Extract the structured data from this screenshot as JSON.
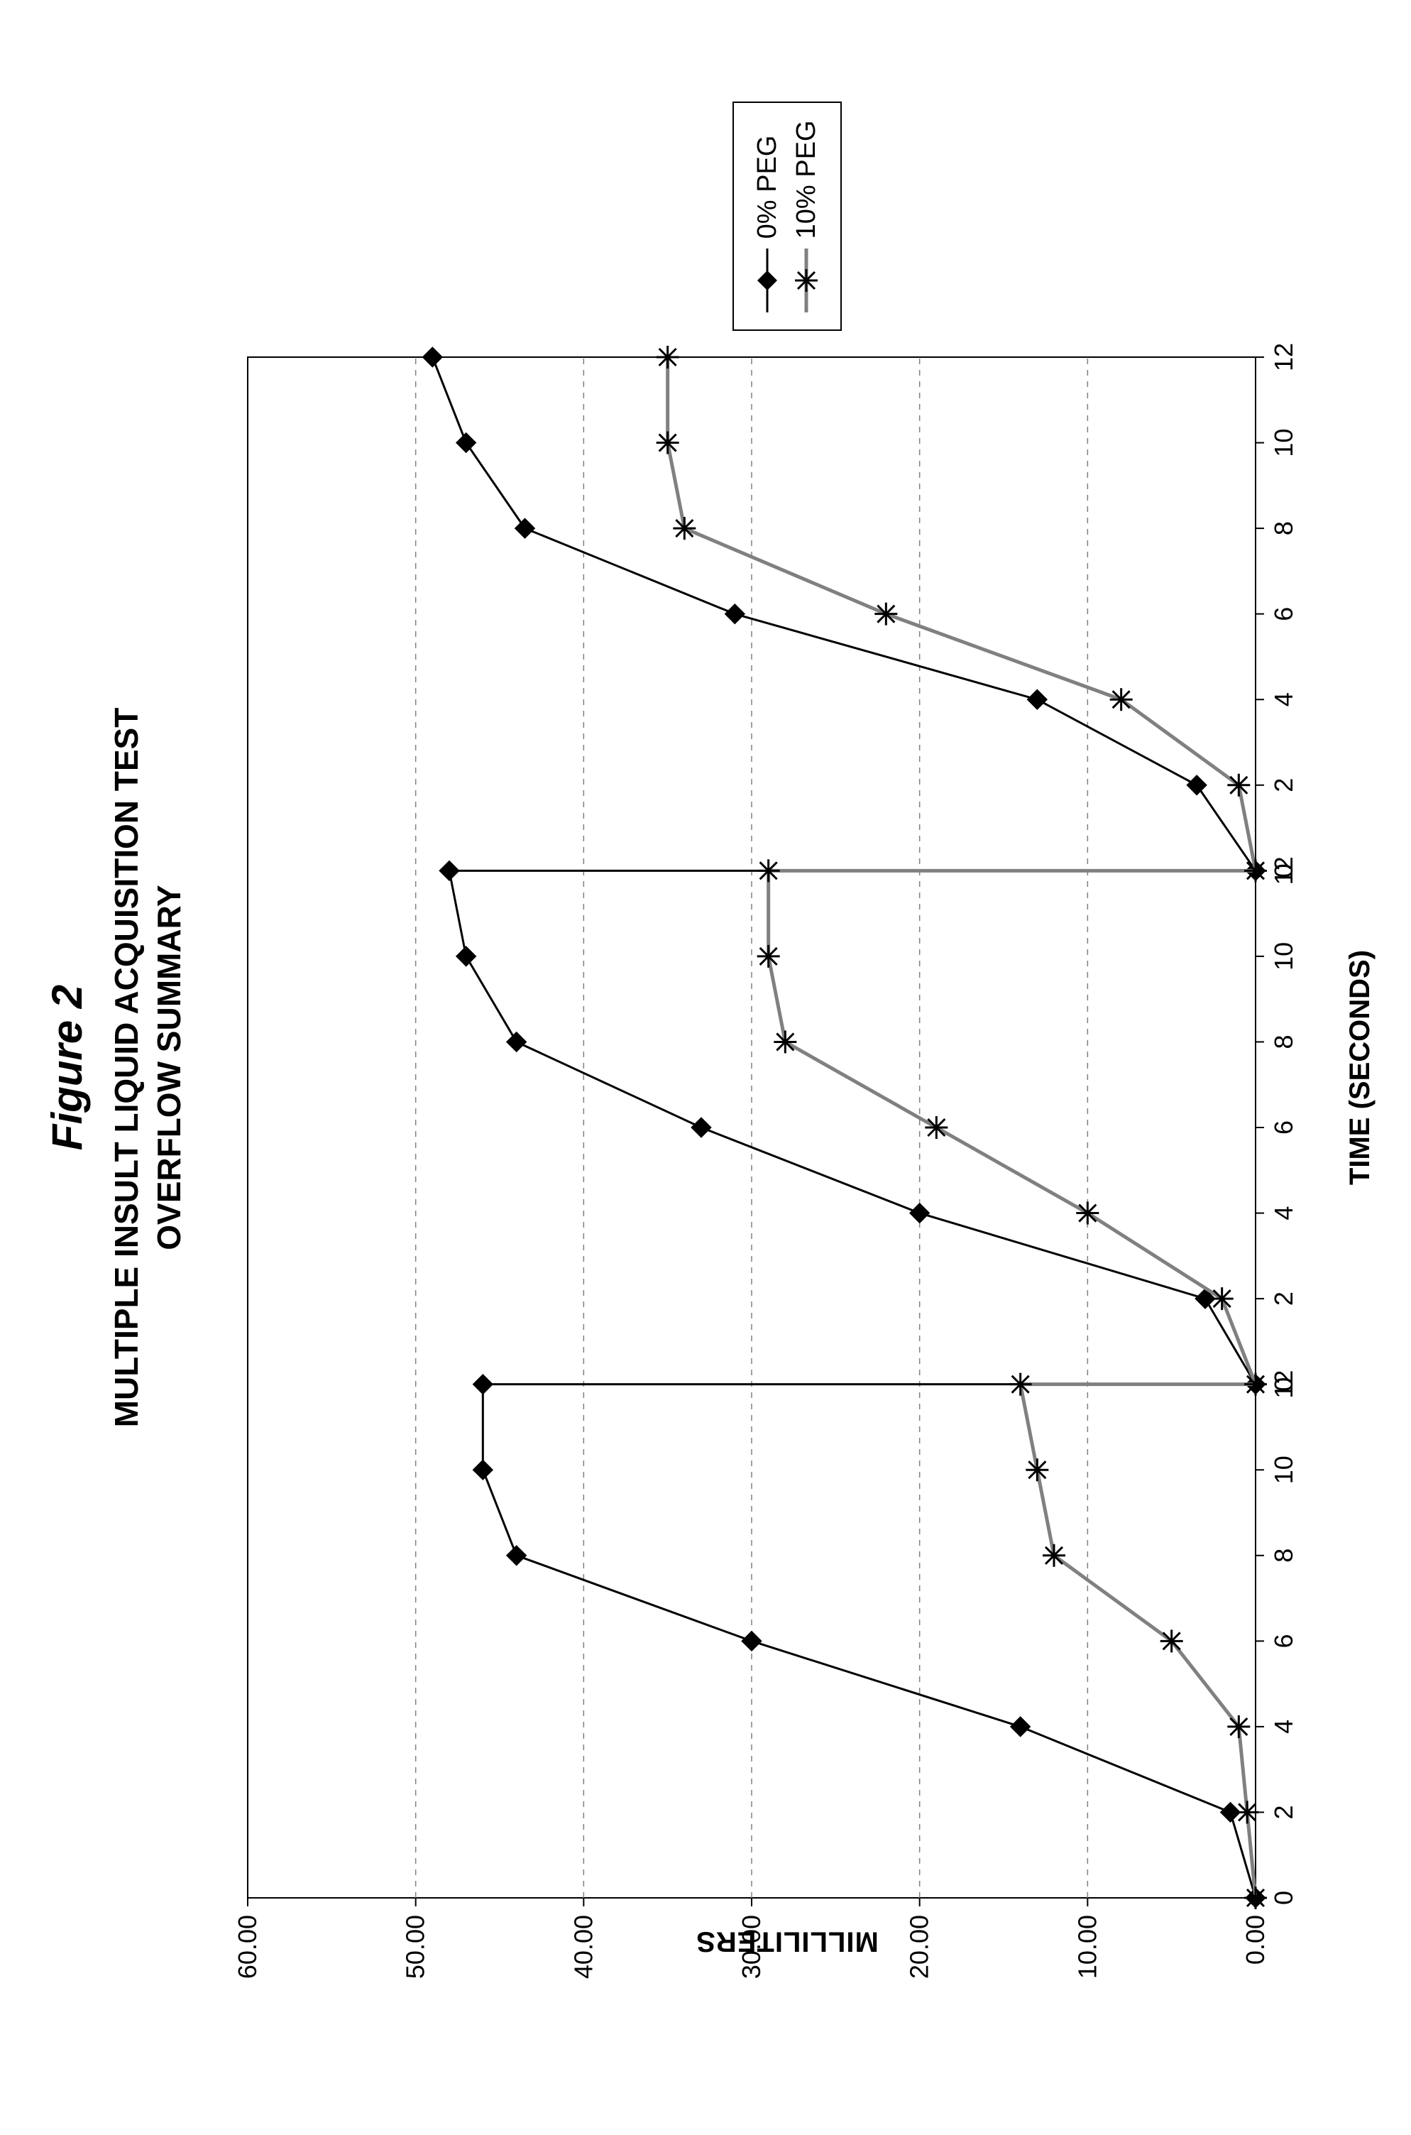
{
  "figure_label": "Figure 2",
  "title_line1": "MULTIPLE INSULT LIQUID ACQUISITION TEST",
  "title_line2": "OVERFLOW SUMMARY",
  "xlabel": "TIME (SECONDS)",
  "ylabel": "MILLILITERS",
  "chart": {
    "type": "line",
    "background_color": "#ffffff",
    "plot_border_color": "#000000",
    "plot_border_width": 2,
    "grid_color": "#808080",
    "grid_dash": "8 8",
    "grid_width": 1.5,
    "label_fontsize": 40,
    "tick_fontsize": 36,
    "y": {
      "min": 0,
      "max": 60,
      "ticks": [
        0,
        10,
        20,
        30,
        40,
        50,
        60
      ],
      "tick_labels": [
        "0.00",
        "10.00",
        "20.00",
        "30.00",
        "40.00",
        "50.00",
        "60.00"
      ]
    },
    "panels": [
      {
        "x_ticks": [
          0,
          2,
          4,
          6,
          8,
          10,
          12
        ]
      },
      {
        "x_ticks": [
          0,
          2,
          4,
          6,
          8,
          10,
          12
        ]
      },
      {
        "x_ticks": [
          0,
          2,
          4,
          6,
          8,
          10,
          12
        ]
      }
    ],
    "series": [
      {
        "id": "s0",
        "label": "0% PEG",
        "color": "#000000",
        "line_width": 3,
        "marker": "diamond",
        "marker_size": 14,
        "marker_fill": "#000000",
        "segments": [
          {
            "panel": 0,
            "x": [
              0,
              2,
              4,
              6,
              8,
              10,
              12
            ],
            "y": [
              0.0,
              1.5,
              14.0,
              30.0,
              44.0,
              46.0,
              46.0
            ]
          },
          {
            "panel": 1,
            "x": [
              0,
              2,
              4,
              6,
              8,
              10,
              12
            ],
            "y": [
              0.0,
              3.0,
              20.0,
              33.0,
              44.0,
              47.0,
              48.0
            ]
          },
          {
            "panel": 2,
            "x": [
              0,
              2,
              4,
              6,
              8,
              10,
              12
            ],
            "y": [
              0.0,
              3.5,
              13.0,
              31.0,
              43.5,
              47.0,
              49.0
            ]
          }
        ]
      },
      {
        "id": "s1",
        "label": "10% PEG",
        "color": "#808080",
        "line_width": 5,
        "marker": "star",
        "marker_size": 16,
        "marker_fill": "#000000",
        "segments": [
          {
            "panel": 0,
            "x": [
              0,
              2,
              4,
              6,
              8,
              10,
              12
            ],
            "y": [
              0.0,
              0.5,
              1.0,
              5.0,
              12.0,
              13.0,
              14.0
            ]
          },
          {
            "panel": 1,
            "x": [
              0,
              2,
              4,
              6,
              8,
              10,
              12
            ],
            "y": [
              0.0,
              2.0,
              10.0,
              19.0,
              28.0,
              29.0,
              29.0
            ]
          },
          {
            "panel": 2,
            "x": [
              0,
              2,
              4,
              6,
              8,
              10,
              12
            ],
            "y": [
              0.0,
              1.0,
              8.0,
              22.0,
              34.0,
              35.0,
              35.0
            ]
          }
        ]
      }
    ]
  }
}
